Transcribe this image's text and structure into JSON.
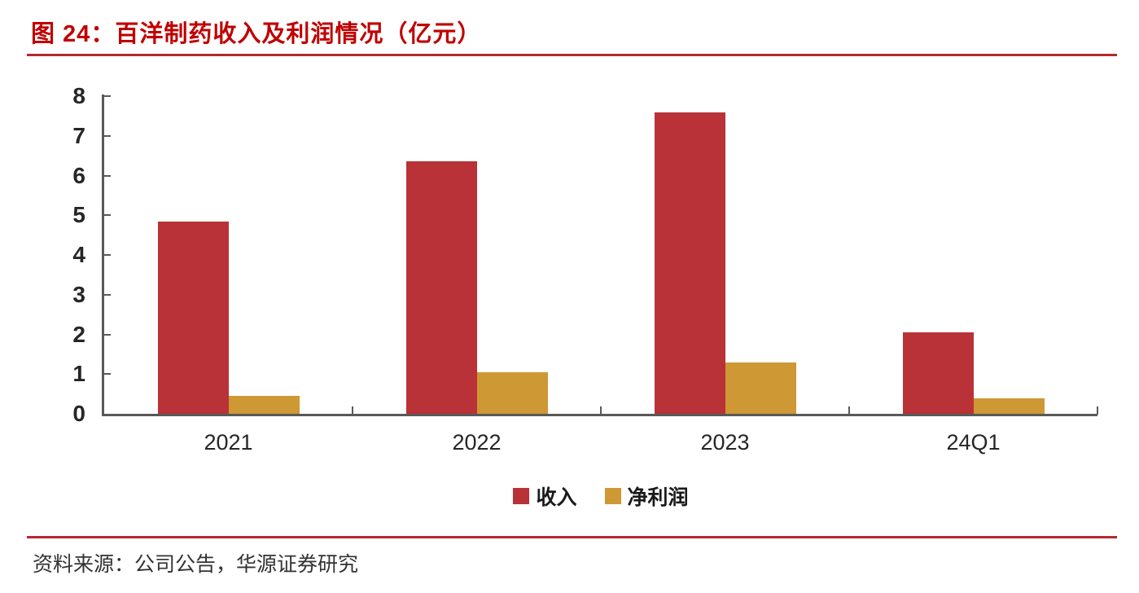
{
  "figure": {
    "title": "图 24：百洋制药收入及利润情况（亿元）",
    "source": "资料来源：公司公告，华源证券研究"
  },
  "colors": {
    "title_red": "#C00000",
    "rule_red": "#B4282E",
    "axis": "#595959",
    "tick_text": "#262626",
    "revenue_bar": "#B93237",
    "net_profit_bar": "#CE9834"
  },
  "chart_data": {
    "type": "bar",
    "title": "百洋制药收入及利润情况（亿元）",
    "categories": [
      "2021",
      "2022",
      "2023",
      "24Q1"
    ],
    "series": [
      {
        "name": "收入",
        "color": "#B93237",
        "values": [
          4.85,
          6.35,
          7.6,
          2.05
        ]
      },
      {
        "name": "净利润",
        "color": "#CE9834",
        "values": [
          0.45,
          1.05,
          1.3,
          0.4
        ]
      }
    ],
    "xlabel": "",
    "ylabel": "",
    "ylim": [
      0,
      8
    ],
    "yticks": [
      0,
      1,
      2,
      3,
      4,
      5,
      6,
      7,
      8
    ],
    "grid": false,
    "legend_position": "bottom"
  }
}
